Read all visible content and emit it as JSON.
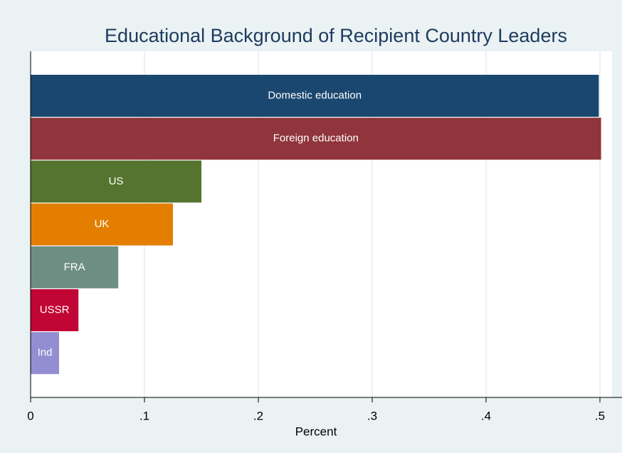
{
  "chart_data": {
    "type": "hbar",
    "title": "Educational Background of Recipient Country Leaders",
    "x_label": "Percent",
    "categories": [
      "Domestic education",
      "Foreign education",
      "US",
      "UK",
      "FRA",
      "USSR",
      "Ind"
    ],
    "values": [
      0.499,
      0.501,
      0.15,
      0.125,
      0.077,
      0.042,
      0.025
    ],
    "colors": [
      "#1a476f",
      "#90353b",
      "#55752f",
      "#e37e00",
      "#6e8e84",
      "#c10534",
      "#938dd2"
    ],
    "xlim": [
      0,
      0.51
    ],
    "xticks": [
      0,
      {
        "value": 0.1,
        "label": ".1"
      },
      {
        "value": 0.2,
        "label": ".2"
      },
      {
        "value": 0.3,
        "label": ".3"
      },
      {
        "value": 0.4,
        "label": ".4"
      },
      {
        "value": 0.5,
        "label": ".5"
      }
    ],
    "grid": true
  }
}
